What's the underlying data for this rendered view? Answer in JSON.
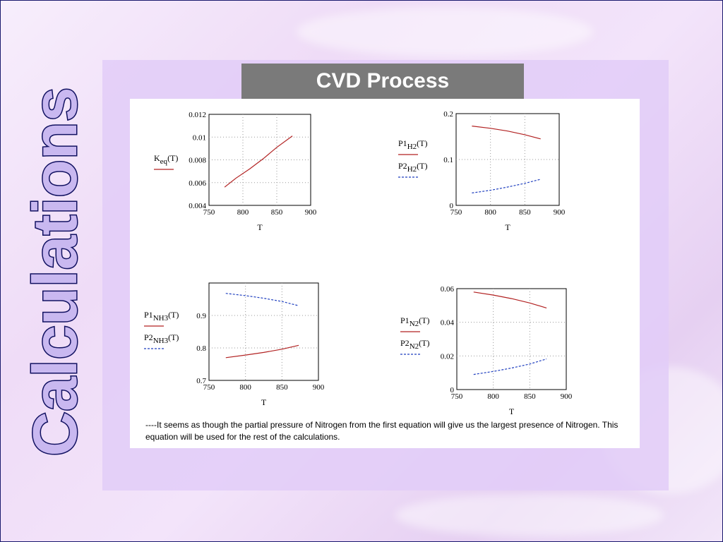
{
  "slide": {
    "side_title": "Calculations",
    "title": "CVD Process",
    "caption": "----It seems as though the partial pressure of Nitrogen from the first equation will give us the largest presence of Nitrogen.  This equation will be used for the rest of the calculations.",
    "colors": {
      "red_series": "#b22222",
      "blue_series": "#1f3fbf",
      "title_bar": "#7a7a7a",
      "side_title_fill": "#c9b8f0",
      "side_title_stroke": "#101060"
    }
  },
  "chart_data": [
    {
      "type": "line",
      "xlabel": "T",
      "xlim": [
        750,
        900
      ],
      "xticks": [
        750,
        800,
        850,
        900
      ],
      "ylim": [
        0.004,
        0.012
      ],
      "yticks": [
        "0.012",
        "0.01",
        "0.008",
        "0.006",
        "0.004"
      ],
      "legend_position": "left",
      "series": [
        {
          "name": "K_eq(T)",
          "label_main": "K",
          "label_sub": "eq",
          "label_tail": "(T)",
          "style": "solid",
          "color": "#b22222",
          "x": [
            773,
            790,
            810,
            830,
            850,
            873
          ],
          "y": [
            0.0056,
            0.0064,
            0.0072,
            0.0081,
            0.0091,
            0.0101
          ]
        }
      ]
    },
    {
      "type": "line",
      "xlabel": "T",
      "xlim": [
        750,
        900
      ],
      "xticks": [
        750,
        800,
        850,
        900
      ],
      "ylim": [
        0,
        0.2
      ],
      "yticks": [
        "0.2",
        "0.1",
        "0"
      ],
      "legend_position": "left",
      "series": [
        {
          "name": "P1_H2(T)",
          "label_main": "P1",
          "label_sub": "H2",
          "label_tail": "(T)",
          "style": "solid",
          "color": "#b22222",
          "x": [
            773,
            800,
            825,
            850,
            873
          ],
          "y": [
            0.173,
            0.168,
            0.162,
            0.154,
            0.145
          ]
        },
        {
          "name": "P2_H2(T)",
          "label_main": "P2",
          "label_sub": "H2",
          "label_tail": "(T)",
          "style": "dashed",
          "color": "#1f3fbf",
          "x": [
            773,
            800,
            825,
            850,
            873
          ],
          "y": [
            0.027,
            0.033,
            0.04,
            0.048,
            0.057
          ]
        }
      ]
    },
    {
      "type": "line",
      "xlabel": "T",
      "xlim": [
        750,
        900
      ],
      "xticks": [
        750,
        800,
        850,
        900
      ],
      "ylim": [
        0.7,
        1.0
      ],
      "yticks": [
        "0.9",
        "0.8",
        "0.7"
      ],
      "legend_position": "left",
      "series": [
        {
          "name": "P1_NH3(T)",
          "label_main": "P1",
          "label_sub": "NH3",
          "label_tail": "(T)",
          "style": "solid",
          "color": "#b22222",
          "x": [
            773,
            800,
            825,
            850,
            873
          ],
          "y": [
            0.77,
            0.778,
            0.786,
            0.796,
            0.808
          ]
        },
        {
          "name": "P2_NH3(T)",
          "label_main": "P2",
          "label_sub": "NH3",
          "label_tail": "(T)",
          "style": "dashed",
          "color": "#1f3fbf",
          "x": [
            773,
            800,
            825,
            850,
            873
          ],
          "y": [
            0.968,
            0.961,
            0.953,
            0.943,
            0.93
          ]
        }
      ]
    },
    {
      "type": "line",
      "xlabel": "T",
      "xlim": [
        750,
        900
      ],
      "xticks": [
        750,
        800,
        850,
        900
      ],
      "ylim": [
        0,
        0.06
      ],
      "yticks": [
        "0.06",
        "0.04",
        "0.02",
        "0"
      ],
      "legend_position": "left",
      "series": [
        {
          "name": "P1_N2(T)",
          "label_main": "P1",
          "label_sub": "N2",
          "label_tail": "(T)",
          "style": "solid",
          "color": "#b22222",
          "x": [
            773,
            800,
            825,
            850,
            873
          ],
          "y": [
            0.058,
            0.0562,
            0.0541,
            0.0515,
            0.0485
          ]
        },
        {
          "name": "P2_N2(T)",
          "label_main": "P2",
          "label_sub": "N2",
          "label_tail": "(T)",
          "style": "dashed",
          "color": "#1f3fbf",
          "x": [
            773,
            800,
            825,
            850,
            873
          ],
          "y": [
            0.009,
            0.0108,
            0.0128,
            0.0152,
            0.0182
          ]
        }
      ]
    }
  ]
}
